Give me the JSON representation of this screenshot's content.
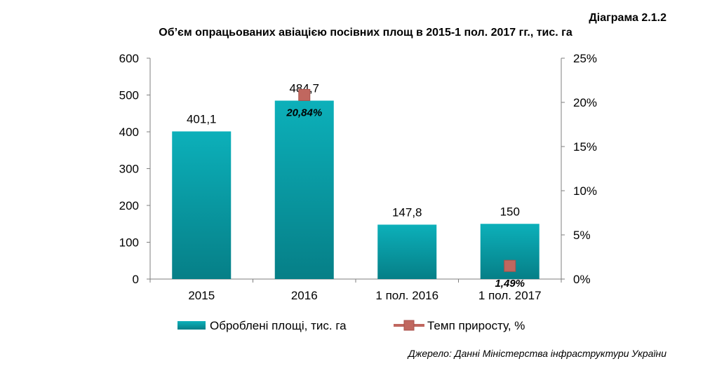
{
  "header": {
    "diagram_label": "Діаграма 2.1.2",
    "title": "Об’єм опрацьованих авіацією посівних площ в 2015-1 пол. 2017 гг., тис. га"
  },
  "chart_data": {
    "type": "bar",
    "categories": [
      "2015",
      "2016",
      "1 пол. 2016",
      "1 пол. 2017"
    ],
    "series": [
      {
        "name": "Оброблені площі, тис. га",
        "type": "bar",
        "axis": "left",
        "values": [
          401.1,
          484.7,
          147.8,
          150
        ],
        "labels": [
          "401,1",
          "484,7",
          "147,8",
          "150"
        ],
        "color": "#0aa5b0"
      },
      {
        "name": "Темп приросту, %",
        "type": "line-marker",
        "axis": "right",
        "values": [
          null,
          20.84,
          null,
          1.49
        ],
        "labels": [
          "",
          "20,84%",
          "",
          "1,49%"
        ],
        "color": "#c0675f"
      }
    ],
    "y_left": {
      "min": 0,
      "max": 600,
      "ticks": [
        "0",
        "100",
        "200",
        "300",
        "400",
        "500",
        "600"
      ]
    },
    "y_right": {
      "min": 0,
      "max": 25,
      "ticks": [
        "0%",
        "5%",
        "10%",
        "15%",
        "20%",
        "25%"
      ]
    },
    "legend": "bottom",
    "grid": false
  },
  "footer": {
    "source": "Джерело: Данні Міністерства інфраструктури України"
  }
}
